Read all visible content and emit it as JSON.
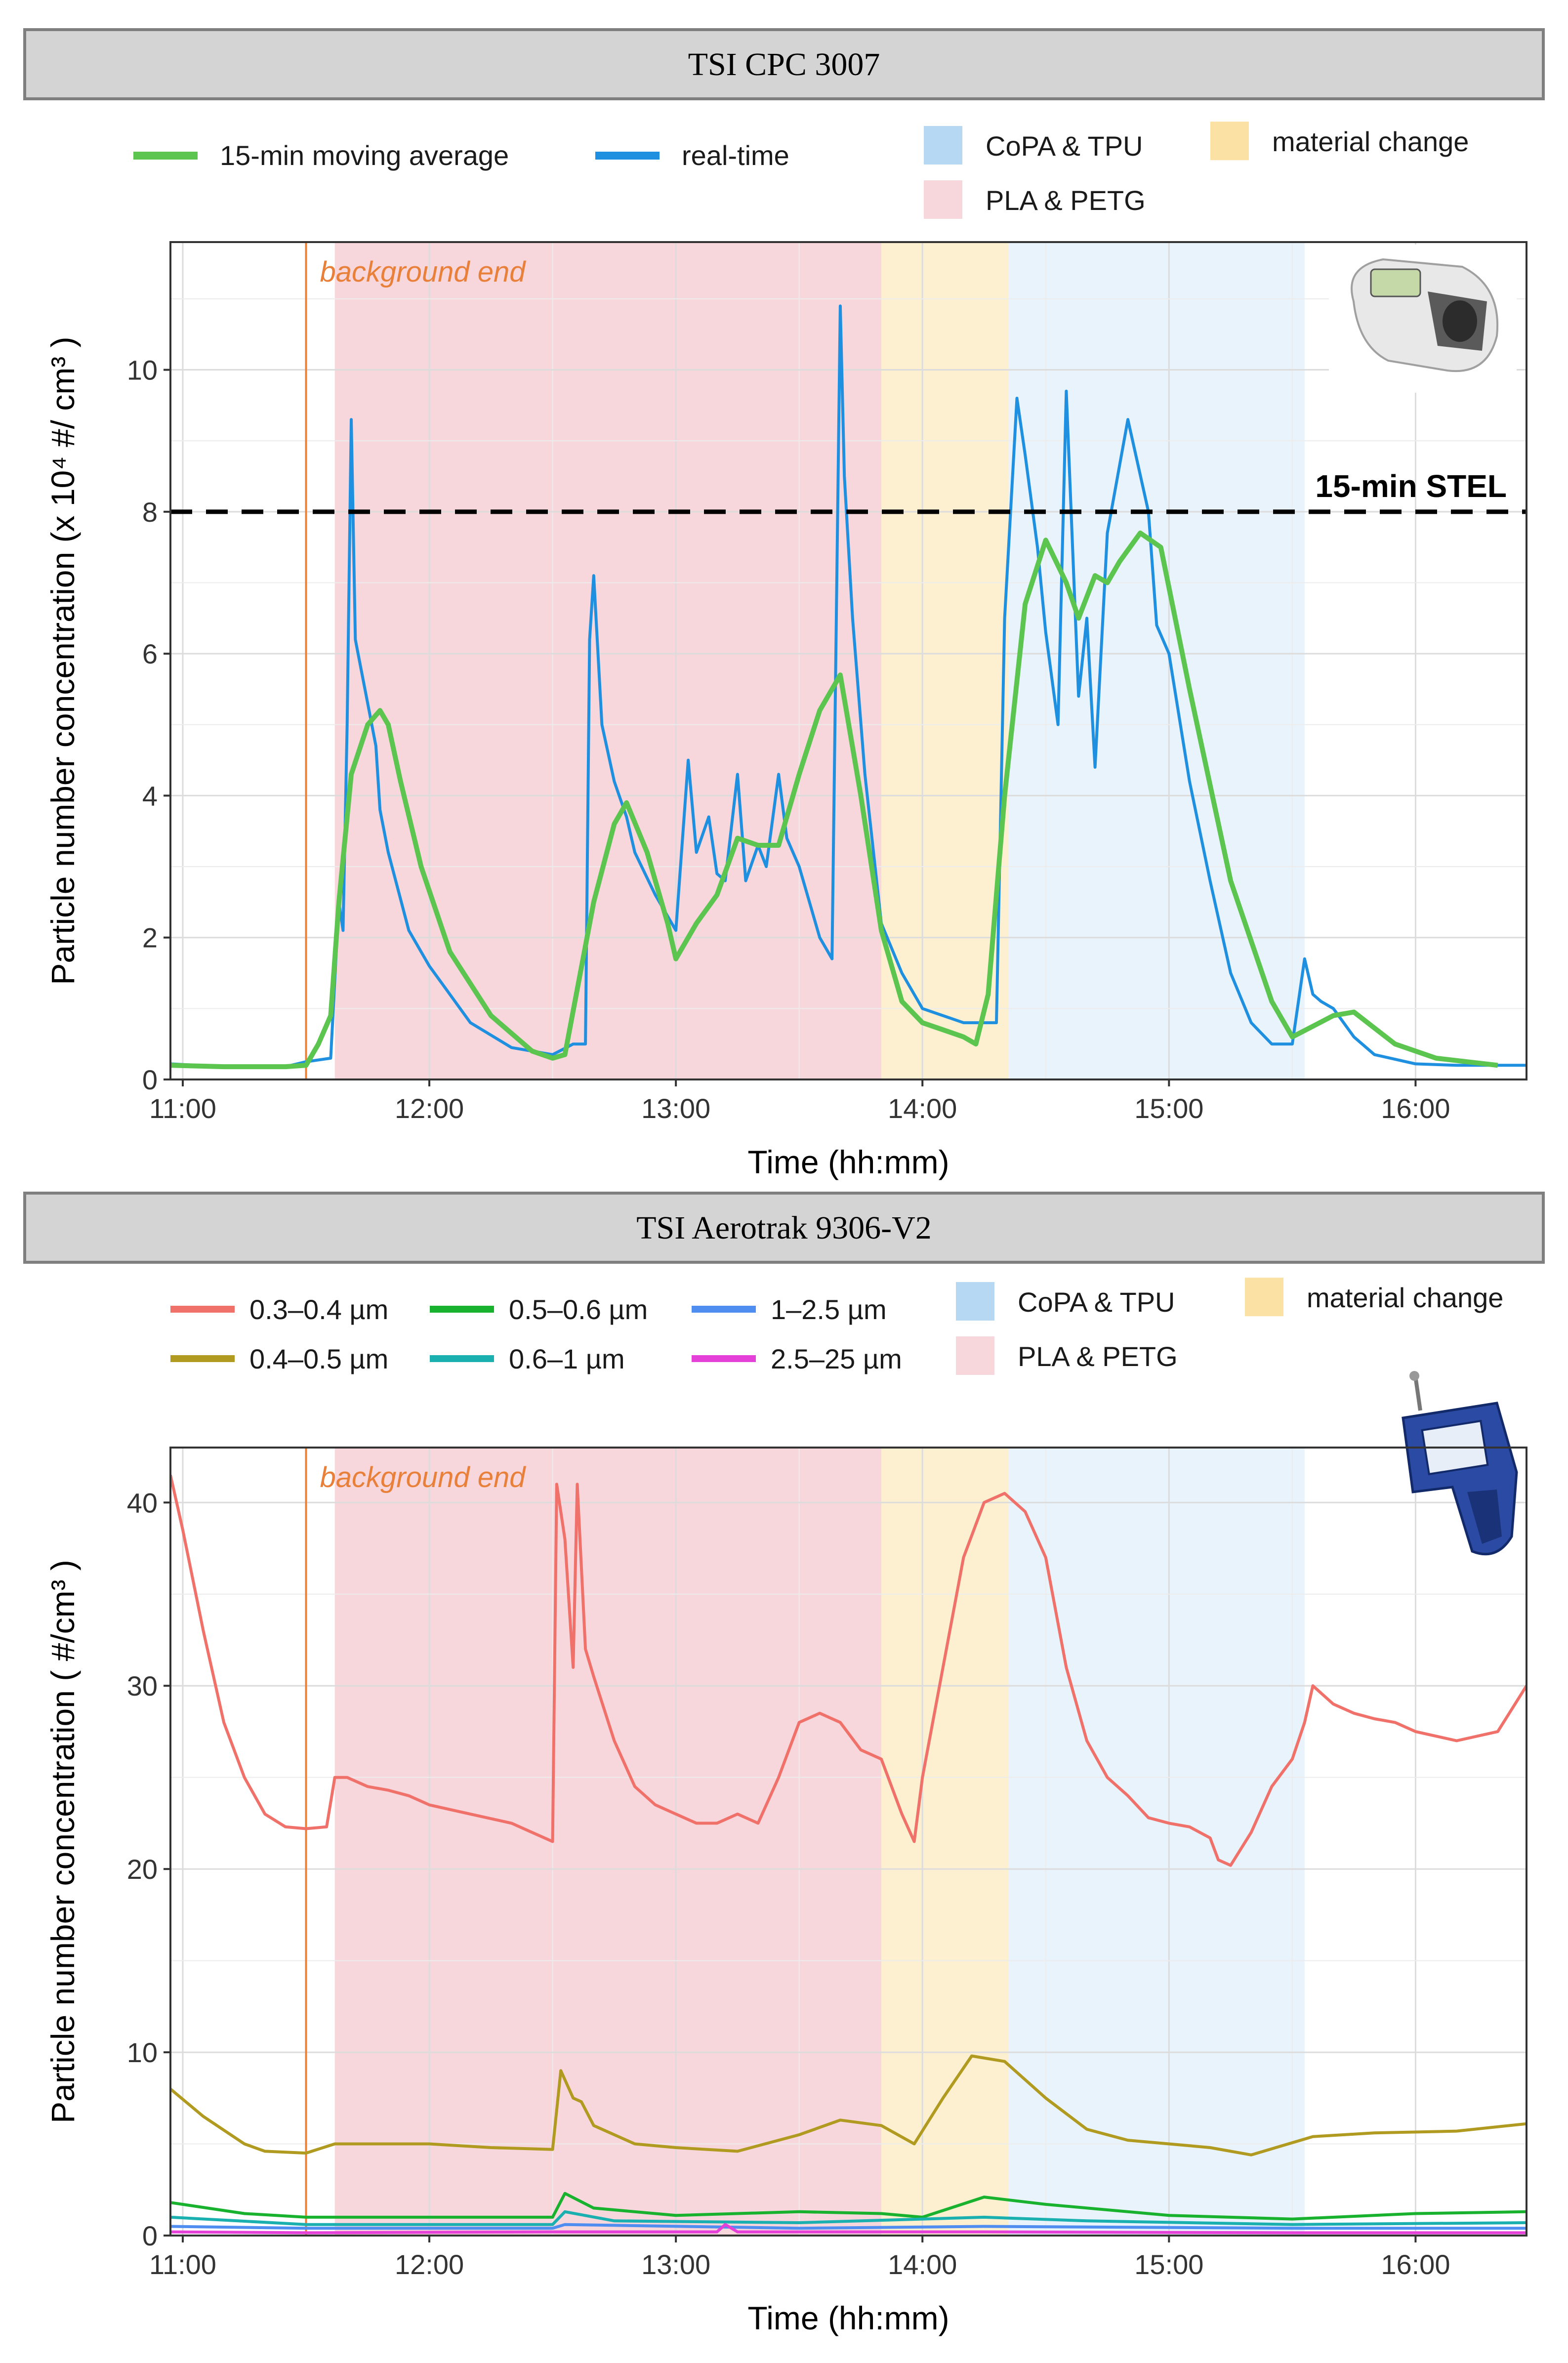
{
  "chart_data": [
    {
      "type": "line",
      "title": "TSI CPC 3007",
      "xlabel": "Time (hh:mm)",
      "ylabel": "Particle number concentration (x 10⁴ #/ cm³ )",
      "xlim": [
        "10:57",
        "16:27"
      ],
      "ylim": [
        0,
        11.8
      ],
      "x_ticks": [
        "11:00",
        "12:00",
        "13:00",
        "14:00",
        "15:00",
        "16:00"
      ],
      "y_ticks": [
        "0",
        "2",
        "4",
        "6",
        "8",
        "10"
      ],
      "legend": {
        "lines": [
          "15-min moving average",
          "real-time"
        ],
        "regions": [
          "CoPA & TPU",
          "PLA & PETG",
          "material change"
        ]
      },
      "regions": [
        {
          "name": "PLA & PETG",
          "start": "11:37",
          "end": "13:50",
          "color": "#f8d7dc"
        },
        {
          "name": "material change",
          "start": "13:50",
          "end": "14:21",
          "color": "#fdf0d0"
        },
        {
          "name": "CoPA & TPU",
          "start": "14:21",
          "end": "15:33",
          "color": "#e9f3fb"
        }
      ],
      "vline": {
        "x": "11:30",
        "label": "background end",
        "color": "#e8803a"
      },
      "hline": {
        "y": 8,
        "label": "15-min STEL"
      },
      "series": [
        {
          "name": "real-time",
          "color": "#1f8fe0",
          "x": [
            "10:57",
            "11:10",
            "11:25",
            "11:30",
            "11:36",
            "11:38",
            "11:39",
            "11:40",
            "11:41",
            "11:42",
            "11:43",
            "11:45",
            "11:47",
            "11:48",
            "11:50",
            "11:55",
            "12:00",
            "12:10",
            "12:20",
            "12:30",
            "12:35",
            "12:38",
            "12:39",
            "12:40",
            "12:42",
            "12:45",
            "12:48",
            "12:50",
            "12:55",
            "13:00",
            "13:03",
            "13:05",
            "13:08",
            "13:10",
            "13:12",
            "13:15",
            "13:17",
            "13:20",
            "13:22",
            "13:25",
            "13:27",
            "13:30",
            "13:35",
            "13:38",
            "13:40",
            "13:41",
            "13:43",
            "13:46",
            "13:50",
            "13:55",
            "14:00",
            "14:10",
            "14:18",
            "14:20",
            "14:23",
            "14:25",
            "14:28",
            "14:30",
            "14:33",
            "14:35",
            "14:38",
            "14:40",
            "14:42",
            "14:45",
            "14:50",
            "14:55",
            "14:57",
            "15:00",
            "15:05",
            "15:10",
            "15:15",
            "15:20",
            "15:25",
            "15:30",
            "15:33",
            "15:35",
            "15:37",
            "15:40",
            "15:45",
            "15:50",
            "16:00",
            "16:10",
            "16:20",
            "16:27"
          ],
          "values": [
            0.22,
            0.18,
            0.18,
            0.25,
            0.3,
            2.5,
            2.1,
            5.0,
            9.3,
            6.2,
            5.9,
            5.3,
            4.7,
            3.8,
            3.2,
            2.1,
            1.6,
            0.8,
            0.45,
            0.35,
            0.5,
            0.5,
            6.2,
            7.1,
            5.0,
            4.2,
            3.7,
            3.2,
            2.6,
            2.1,
            4.5,
            3.2,
            3.7,
            2.9,
            2.8,
            4.3,
            2.8,
            3.3,
            3.0,
            4.3,
            3.4,
            3.0,
            2.0,
            1.7,
            10.9,
            8.5,
            6.5,
            4.3,
            2.2,
            1.5,
            1.0,
            0.8,
            0.8,
            6.5,
            9.6,
            8.8,
            7.5,
            6.3,
            5.0,
            9.7,
            5.4,
            6.5,
            4.4,
            7.7,
            9.3,
            8.0,
            6.4,
            6.0,
            4.2,
            2.8,
            1.5,
            0.8,
            0.5,
            0.5,
            1.7,
            1.2,
            1.1,
            1.0,
            0.6,
            0.35,
            0.22,
            0.2,
            0.2,
            0.2
          ]
        },
        {
          "name": "15-min moving average",
          "color": "#5bc550",
          "x": [
            "10:57",
            "11:10",
            "11:25",
            "11:30",
            "11:33",
            "11:36",
            "11:38",
            "11:41",
            "11:45",
            "11:48",
            "11:50",
            "11:53",
            "11:58",
            "12:05",
            "12:15",
            "12:25",
            "12:30",
            "12:33",
            "12:40",
            "12:45",
            "12:48",
            "12:53",
            "12:58",
            "13:00",
            "13:05",
            "13:10",
            "13:15",
            "13:20",
            "13:25",
            "13:30",
            "13:35",
            "13:40",
            "13:45",
            "13:50",
            "13:55",
            "14:00",
            "14:05",
            "14:10",
            "14:13",
            "14:16",
            "14:20",
            "14:25",
            "14:30",
            "14:35",
            "14:38",
            "14:42",
            "14:45",
            "14:48",
            "14:53",
            "14:58",
            "15:05",
            "15:15",
            "15:25",
            "15:30",
            "15:35",
            "15:40",
            "15:45",
            "15:55",
            "16:05",
            "16:20"
          ],
          "values": [
            0.2,
            0.18,
            0.18,
            0.2,
            0.5,
            0.9,
            2.5,
            4.3,
            5.0,
            5.2,
            5.0,
            4.2,
            3.0,
            1.8,
            0.9,
            0.4,
            0.3,
            0.35,
            2.5,
            3.6,
            3.9,
            3.2,
            2.2,
            1.7,
            2.2,
            2.6,
            3.4,
            3.3,
            3.3,
            4.3,
            5.2,
            5.7,
            4.0,
            2.1,
            1.1,
            0.8,
            0.7,
            0.6,
            0.5,
            1.2,
            4.0,
            6.7,
            7.6,
            7.0,
            6.5,
            7.1,
            7.0,
            7.3,
            7.7,
            7.5,
            5.5,
            2.8,
            1.1,
            0.6,
            0.75,
            0.9,
            0.95,
            0.5,
            0.3,
            0.2
          ]
        }
      ],
      "image": "condensation-particle-counter-device"
    },
    {
      "type": "line",
      "title": "TSI Aerotrak 9306-V2",
      "xlabel": "Time (hh:mm)",
      "ylabel": "Particle number concentration ( #/cm³ )",
      "xlim": [
        "10:57",
        "16:27"
      ],
      "ylim": [
        0,
        43
      ],
      "x_ticks": [
        "11:00",
        "12:00",
        "13:00",
        "14:00",
        "15:00",
        "16:00"
      ],
      "y_ticks": [
        "0",
        "10",
        "20",
        "30",
        "40"
      ],
      "legend": {
        "lines": [
          "0.3–0.4 µm",
          "0.4–0.5 µm",
          "0.5–0.6 µm",
          "0.6–1 µm",
          "1–2.5 µm",
          "2.5–25 µm"
        ],
        "regions": [
          "CoPA & TPU",
          "PLA & PETG",
          "material change"
        ]
      },
      "regions": [
        {
          "name": "PLA & PETG",
          "start": "11:37",
          "end": "13:50",
          "color": "#f8d7dc"
        },
        {
          "name": "material change",
          "start": "13:50",
          "end": "14:21",
          "color": "#fdf0d0"
        },
        {
          "name": "CoPA & TPU",
          "start": "14:21",
          "end": "15:33",
          "color": "#e9f3fb"
        }
      ],
      "vline": {
        "x": "11:30",
        "label": "background end",
        "color": "#e8803a"
      },
      "series": [
        {
          "name": "0.3–0.4 µm",
          "color": "#f0706a",
          "x": [
            "10:57",
            "11:00",
            "11:05",
            "11:10",
            "11:15",
            "11:20",
            "11:25",
            "11:30",
            "11:35",
            "11:37",
            "11:40",
            "11:45",
            "11:50",
            "11:55",
            "12:00",
            "12:10",
            "12:20",
            "12:25",
            "12:30",
            "12:31",
            "12:33",
            "12:35",
            "12:36",
            "12:38",
            "12:40",
            "12:45",
            "12:50",
            "12:55",
            "13:00",
            "13:05",
            "13:10",
            "13:15",
            "13:20",
            "13:25",
            "13:30",
            "13:35",
            "13:40",
            "13:45",
            "13:50",
            "13:55",
            "13:58",
            "14:00",
            "14:05",
            "14:10",
            "14:15",
            "14:20",
            "14:25",
            "14:30",
            "14:35",
            "14:40",
            "14:45",
            "14:50",
            "14:55",
            "15:00",
            "15:05",
            "15:10",
            "15:12",
            "15:15",
            "15:20",
            "15:25",
            "15:30",
            "15:33",
            "15:35",
            "15:40",
            "15:45",
            "15:50",
            "15:55",
            "16:00",
            "16:10",
            "16:20",
            "16:27"
          ],
          "values": [
            41.5,
            38.5,
            33,
            28,
            25,
            23,
            22.3,
            22.2,
            22.3,
            25,
            25,
            24.5,
            24.3,
            24,
            23.5,
            23,
            22.5,
            22,
            21.5,
            41,
            38,
            31,
            41,
            32,
            30.5,
            27,
            24.5,
            23.5,
            23,
            22.5,
            22.5,
            23,
            22.5,
            25,
            28,
            28.5,
            28,
            26.5,
            26,
            23,
            21.5,
            25,
            31,
            37,
            40,
            40.5,
            39.5,
            37,
            31,
            27,
            25,
            24,
            22.8,
            22.5,
            22.3,
            21.7,
            20.5,
            20.2,
            22,
            24.5,
            26,
            28,
            30,
            29,
            28.5,
            28.2,
            28,
            27.5,
            27,
            27.5,
            30
          ]
        },
        {
          "name": "0.4–0.5 µm",
          "color": "#b09a20",
          "x": [
            "10:57",
            "11:05",
            "11:15",
            "11:20",
            "11:30",
            "11:37",
            "11:45",
            "12:00",
            "12:15",
            "12:30",
            "12:32",
            "12:35",
            "12:37",
            "12:40",
            "12:50",
            "13:00",
            "13:15",
            "13:30",
            "13:40",
            "13:50",
            "13:58",
            "14:05",
            "14:12",
            "14:20",
            "14:30",
            "14:40",
            "14:50",
            "15:00",
            "15:10",
            "15:20",
            "15:35",
            "15:50",
            "16:10",
            "16:27"
          ],
          "values": [
            8,
            6.5,
            5,
            4.6,
            4.5,
            5,
            5,
            5,
            4.8,
            4.7,
            9,
            7.5,
            7.3,
            6,
            5,
            4.8,
            4.6,
            5.5,
            6.3,
            6,
            5,
            7.5,
            9.8,
            9.5,
            7.5,
            5.8,
            5.2,
            5,
            4.8,
            4.4,
            5.4,
            5.6,
            5.7,
            6.1
          ]
        },
        {
          "name": "0.5–0.6 µm",
          "color": "#18b22e",
          "x": [
            "10:57",
            "11:15",
            "11:30",
            "12:00",
            "12:30",
            "12:33",
            "12:40",
            "13:00",
            "13:30",
            "13:50",
            "14:00",
            "14:15",
            "14:30",
            "15:00",
            "15:30",
            "16:00",
            "16:27"
          ],
          "values": [
            1.8,
            1.2,
            1.0,
            1.0,
            1.0,
            2.3,
            1.5,
            1.1,
            1.3,
            1.2,
            1.0,
            2.1,
            1.7,
            1.1,
            0.9,
            1.2,
            1.3
          ]
        },
        {
          "name": "0.6–1 µm",
          "color": "#1bb0b0",
          "x": [
            "10:57",
            "11:30",
            "12:30",
            "12:33",
            "12:45",
            "13:30",
            "14:15",
            "14:40",
            "15:30",
            "16:27"
          ],
          "values": [
            1.0,
            0.6,
            0.6,
            1.3,
            0.8,
            0.7,
            1.0,
            0.8,
            0.6,
            0.7
          ]
        },
        {
          "name": "1–2.5 µm",
          "color": "#4f8ef0",
          "x": [
            "10:57",
            "11:30",
            "12:30",
            "12:33",
            "13:30",
            "14:15",
            "15:30",
            "16:27"
          ],
          "values": [
            0.5,
            0.4,
            0.4,
            0.6,
            0.4,
            0.5,
            0.4,
            0.4
          ]
        },
        {
          "name": "2.5–25 µm",
          "color": "#e540d8",
          "x": [
            "10:57",
            "11:30",
            "12:30",
            "13:10",
            "13:12",
            "13:15",
            "14:15",
            "15:30",
            "16:27"
          ],
          "values": [
            0.2,
            0.15,
            0.2,
            0.2,
            0.6,
            0.2,
            0.2,
            0.15,
            0.15
          ]
        }
      ],
      "image": "handheld-particle-counter-device"
    }
  ]
}
